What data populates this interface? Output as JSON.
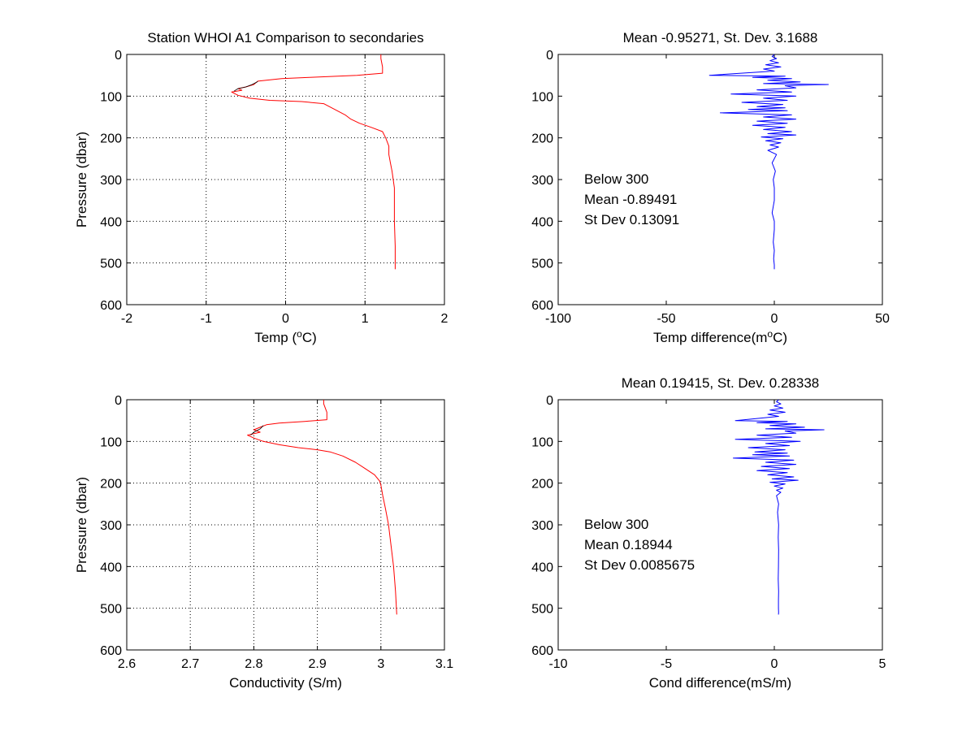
{
  "chart_data": [
    {
      "id": "temp",
      "type": "line",
      "title": "Station  WHOI A1 Comparison to secondaries",
      "xlabel": "Temp (",
      "xlabel_sup": "o",
      "xlabel_tail": "C)",
      "ylabel": "Pressure (dbar)",
      "xlim": [
        -2,
        2
      ],
      "ylim": [
        0,
        600
      ],
      "y_reversed": true,
      "grid": true,
      "xticks": [
        -2,
        -1,
        0,
        1,
        2
      ],
      "yticks": [
        0,
        100,
        200,
        300,
        400,
        500,
        600
      ],
      "xtick_labels": [
        "-2",
        "-1",
        "0",
        "1",
        "2"
      ],
      "ytick_labels": [
        "0",
        "100",
        "200",
        "300",
        "400",
        "500",
        "600"
      ],
      "color": "#ff0000",
      "series": [
        {
          "x": [
            1.2,
            1.2,
            1.22,
            1.22,
            0.9,
            0.3,
            -0.05,
            -0.35,
            -0.4,
            -0.5,
            -0.6,
            -0.55,
            -0.68,
            -0.6,
            -0.45,
            -0.2,
            0.2,
            0.48,
            0.6,
            0.75,
            0.82,
            0.93,
            1.08,
            1.22,
            1.26,
            1.3,
            1.3,
            1.32,
            1.34,
            1.37,
            1.37,
            1.38,
            1.38
          ],
          "y": [
            0,
            10,
            30,
            45,
            50,
            55,
            58,
            64,
            72,
            78,
            82,
            86,
            90,
            98,
            105,
            110,
            113,
            118,
            130,
            145,
            155,
            165,
            175,
            185,
            200,
            220,
            240,
            260,
            280,
            320,
            400,
            460,
            515
          ]
        }
      ],
      "overlay": {
        "color": "#000000",
        "x": [
          -0.35,
          -0.42,
          -0.5,
          -0.6,
          -0.65
        ],
        "y": [
          65,
          72,
          78,
          82,
          88
        ]
      }
    },
    {
      "id": "tempdiff",
      "type": "line",
      "title": "Mean -0.95271, St. Dev. 3.1688",
      "xlabel": "Temp difference(m",
      "xlabel_sup": "o",
      "xlabel_tail": "C)",
      "xlim": [
        -100,
        50
      ],
      "ylim": [
        0,
        600
      ],
      "y_reversed": true,
      "grid": false,
      "xticks": [
        -100,
        -50,
        0,
        50
      ],
      "yticks": [
        0,
        100,
        200,
        300,
        400,
        500,
        600
      ],
      "xtick_labels": [
        "-100",
        "-50",
        "0",
        "50"
      ],
      "ytick_labels": [
        "0",
        "100",
        "200",
        "300",
        "400",
        "500",
        "600"
      ],
      "color": "#0000ff",
      "annotation": [
        "Below 300",
        "Mean -0.89491",
        "St Dev 0.13091"
      ],
      "series": [
        {
          "x": [
            0,
            -1,
            1,
            -2,
            2,
            -4,
            3,
            -5,
            0,
            -30,
            5,
            -10,
            8,
            -3,
            12,
            -5,
            25,
            5,
            10,
            -8,
            8,
            -20,
            10,
            -5,
            6,
            -15,
            4,
            -8,
            5,
            -12,
            6,
            -25,
            8,
            -5,
            10,
            -8,
            6,
            -10,
            5,
            -5,
            8,
            -3,
            10,
            -6,
            4,
            -4,
            3,
            -2,
            2,
            -3,
            1,
            -1,
            0.5,
            -0.5,
            0,
            0,
            -1,
            0,
            0,
            -0.5,
            0,
            -0.3,
            0,
            0
          ],
          "y": [
            0,
            5,
            10,
            15,
            20,
            25,
            30,
            35,
            40,
            50,
            52,
            55,
            58,
            62,
            66,
            70,
            72,
            75,
            80,
            85,
            90,
            95,
            100,
            105,
            110,
            115,
            120,
            125,
            128,
            132,
            135,
            140,
            145,
            150,
            155,
            160,
            165,
            170,
            175,
            180,
            185,
            190,
            193,
            198,
            202,
            207,
            212,
            217,
            222,
            230,
            240,
            260,
            280,
            300,
            320,
            350,
            380,
            400,
            420,
            450,
            470,
            490,
            505,
            515
          ]
        }
      ]
    },
    {
      "id": "cond",
      "type": "line",
      "xlabel": "Conductivity (S/m)",
      "ylabel": "Pressure (dbar)",
      "xlim": [
        2.6,
        3.1
      ],
      "ylim": [
        0,
        600
      ],
      "y_reversed": true,
      "grid": true,
      "xticks": [
        2.6,
        2.7,
        2.8,
        2.9,
        3.0,
        3.1
      ],
      "yticks": [
        0,
        100,
        200,
        300,
        400,
        500,
        600
      ],
      "xtick_labels": [
        "2.6",
        "2.7",
        "2.8",
        "2.9",
        "3",
        "3.1"
      ],
      "ytick_labels": [
        "0",
        "100",
        "200",
        "300",
        "400",
        "500",
        "600"
      ],
      "color": "#ff0000",
      "series": [
        {
          "x": [
            2.91,
            2.91,
            2.915,
            2.915,
            2.88,
            2.84,
            2.82,
            2.81,
            2.8,
            2.81,
            2.79,
            2.8,
            2.815,
            2.84,
            2.87,
            2.9,
            2.92,
            2.94,
            2.96,
            2.975,
            2.99,
            2.998,
            3.0,
            3.003,
            3.007,
            3.012,
            3.016,
            3.02,
            3.023,
            3.025
          ],
          "y": [
            0,
            10,
            30,
            48,
            52,
            56,
            60,
            66,
            72,
            78,
            85,
            92,
            100,
            108,
            115,
            120,
            125,
            135,
            150,
            165,
            180,
            195,
            205,
            230,
            260,
            300,
            350,
            400,
            460,
            515
          ]
        }
      ],
      "overlay": {
        "color": "#000000",
        "x": [
          2.815,
          2.81,
          2.8,
          2.795
        ],
        "y": [
          62,
          70,
          78,
          85
        ]
      }
    },
    {
      "id": "conddiff",
      "type": "line",
      "title": "Mean 0.19415, St. Dev. 0.28338",
      "xlabel": "Cond difference(mS/m)",
      "xlim": [
        -10,
        5
      ],
      "ylim": [
        0,
        600
      ],
      "y_reversed": true,
      "grid": false,
      "xticks": [
        -10,
        -5,
        0,
        5
      ],
      "yticks": [
        0,
        100,
        200,
        300,
        400,
        500,
        600
      ],
      "xtick_labels": [
        "-10",
        "-5",
        "0",
        "5"
      ],
      "ytick_labels": [
        "0",
        "100",
        "200",
        "300",
        "400",
        "500",
        "600"
      ],
      "color": "#0000ff",
      "annotation": [
        "Below 300",
        "Mean 0.18944",
        "St Dev 0.0085675"
      ],
      "series": [
        {
          "x": [
            0.2,
            0.1,
            0.3,
            0.0,
            0.4,
            -0.2,
            0.5,
            -0.3,
            0.2,
            -1.8,
            0.6,
            -0.8,
            1.0,
            -0.2,
            1.4,
            -0.4,
            2.3,
            0.5,
            1.0,
            -0.8,
            0.8,
            -1.8,
            1.2,
            -0.4,
            0.7,
            -1.2,
            0.5,
            -0.9,
            0.6,
            -1.0,
            0.7,
            -1.9,
            0.9,
            -0.4,
            1.0,
            -0.6,
            0.7,
            -0.8,
            0.6,
            -0.3,
            0.9,
            -0.1,
            1.1,
            -0.2,
            0.5,
            0.0,
            0.4,
            0.1,
            0.3,
            0.1,
            0.2,
            0.15,
            0.2,
            0.18,
            0.2,
            0.19,
            0.18,
            0.2,
            0.19,
            0.19,
            0.2,
            0.19
          ],
          "y": [
            0,
            5,
            10,
            15,
            20,
            25,
            30,
            35,
            40,
            50,
            52,
            55,
            58,
            62,
            66,
            70,
            72,
            75,
            80,
            85,
            90,
            95,
            100,
            105,
            110,
            115,
            120,
            125,
            128,
            132,
            135,
            140,
            145,
            150,
            155,
            160,
            165,
            170,
            175,
            180,
            185,
            190,
            193,
            198,
            202,
            207,
            212,
            217,
            222,
            230,
            250,
            270,
            300,
            330,
            360,
            400,
            430,
            460,
            480,
            500,
            510,
            515
          ]
        }
      ]
    }
  ]
}
